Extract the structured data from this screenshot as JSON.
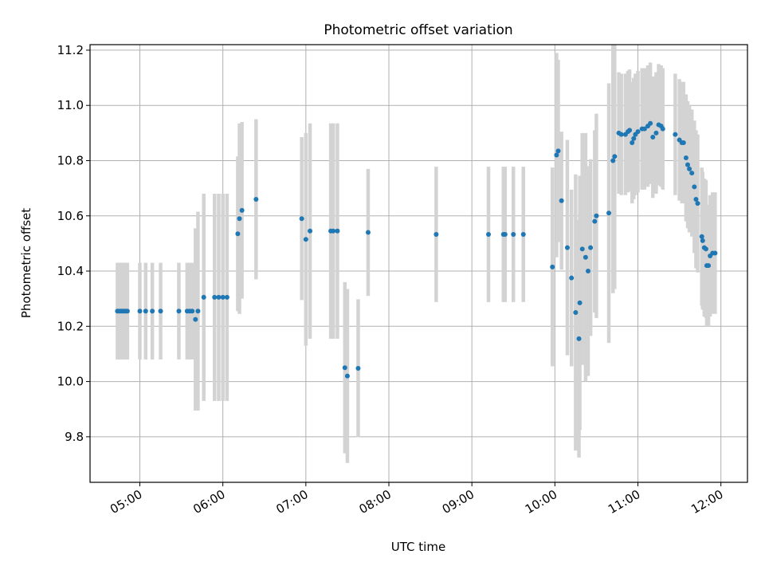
{
  "chart_data": {
    "type": "scatter",
    "title": "Photometric offset variation",
    "xlabel": "UTC time",
    "ylabel": "Photometric offset",
    "x_unit": "UTC hour",
    "xlim": [
      4.4,
      12.32
    ],
    "ylim": [
      9.635,
      11.22
    ],
    "x_ticks": [
      {
        "value": 5,
        "label": "05:00"
      },
      {
        "value": 6,
        "label": "06:00"
      },
      {
        "value": 7,
        "label": "07:00"
      },
      {
        "value": 8,
        "label": "08:00"
      },
      {
        "value": 9,
        "label": "09:00"
      },
      {
        "value": 10,
        "label": "10:00"
      },
      {
        "value": 11,
        "label": "11:00"
      },
      {
        "value": 12,
        "label": "12:00"
      }
    ],
    "y_ticks": [
      {
        "value": 9.8,
        "label": "9.8"
      },
      {
        "value": 10.0,
        "label": "10.0"
      },
      {
        "value": 10.2,
        "label": "10.2"
      },
      {
        "value": 10.4,
        "label": "10.4"
      },
      {
        "value": 10.6,
        "label": "10.6"
      },
      {
        "value": 10.8,
        "label": "10.8"
      },
      {
        "value": 11.0,
        "label": "11.0"
      },
      {
        "value": 11.2,
        "label": "11.2"
      }
    ],
    "grid": true,
    "colors": {
      "marker": "#1f77b4",
      "errorbar": "#d3d3d3",
      "grid": "#b0b0b0"
    },
    "series": [
      {
        "points": [
          [
            4.73,
            10.255,
            0.175
          ],
          [
            4.75,
            10.255,
            0.175
          ],
          [
            4.77,
            10.255,
            0.175
          ],
          [
            4.79,
            10.255,
            0.175
          ],
          [
            4.81,
            10.255,
            0.175
          ],
          [
            4.83,
            10.255,
            0.175
          ],
          [
            4.85,
            10.255,
            0.175
          ],
          [
            5.0,
            10.255,
            0.175
          ],
          [
            5.07,
            10.255,
            0.175
          ],
          [
            5.15,
            10.255,
            0.175
          ],
          [
            5.25,
            10.255,
            0.175
          ],
          [
            5.47,
            10.255,
            0.175
          ],
          [
            5.57,
            10.255,
            0.175
          ],
          [
            5.6,
            10.255,
            0.175
          ],
          [
            5.63,
            10.255,
            0.175
          ],
          [
            5.67,
            10.225,
            0.33
          ],
          [
            5.7,
            10.255,
            0.36
          ],
          [
            5.77,
            10.305,
            0.375
          ],
          [
            5.9,
            10.305,
            0.375
          ],
          [
            5.95,
            10.305,
            0.375
          ],
          [
            6.0,
            10.305,
            0.375
          ],
          [
            6.05,
            10.305,
            0.375
          ],
          [
            6.18,
            10.535,
            0.28
          ],
          [
            6.2,
            10.59,
            0.345
          ],
          [
            6.23,
            10.62,
            0.32
          ],
          [
            6.4,
            10.66,
            0.29
          ],
          [
            6.95,
            10.59,
            0.295
          ],
          [
            7.0,
            10.515,
            0.385
          ],
          [
            7.05,
            10.545,
            0.39
          ],
          [
            7.3,
            10.545,
            0.39
          ],
          [
            7.33,
            10.545,
            0.39
          ],
          [
            7.38,
            10.545,
            0.39
          ],
          [
            7.47,
            10.05,
            0.31
          ],
          [
            7.5,
            10.02,
            0.315
          ],
          [
            7.63,
            10.048,
            0.25
          ],
          [
            7.75,
            10.54,
            0.23
          ],
          [
            8.57,
            10.533,
            0.245
          ],
          [
            9.2,
            10.533,
            0.245
          ],
          [
            9.38,
            10.533,
            0.245
          ],
          [
            9.4,
            10.533,
            0.245
          ],
          [
            9.5,
            10.533,
            0.245
          ],
          [
            9.62,
            10.533,
            0.245
          ],
          [
            9.97,
            10.415,
            0.36
          ],
          [
            10.02,
            10.82,
            0.37
          ],
          [
            10.04,
            10.835,
            0.33
          ],
          [
            10.08,
            10.655,
            0.25
          ],
          [
            10.15,
            10.485,
            0.39
          ],
          [
            10.2,
            10.375,
            0.32
          ],
          [
            10.25,
            10.25,
            0.5
          ],
          [
            10.29,
            10.155,
            0.43
          ],
          [
            10.3,
            10.285,
            0.46
          ],
          [
            10.33,
            10.48,
            0.42
          ],
          [
            10.37,
            10.45,
            0.45
          ],
          [
            10.4,
            10.4,
            0.38
          ],
          [
            10.43,
            10.485,
            0.32
          ],
          [
            10.48,
            10.58,
            0.33
          ],
          [
            10.5,
            10.6,
            0.37
          ],
          [
            10.65,
            10.61,
            0.47
          ],
          [
            10.7,
            10.8,
            0.48
          ],
          [
            10.72,
            10.815,
            0.48
          ],
          [
            10.77,
            10.9,
            0.22
          ],
          [
            10.8,
            10.895,
            0.22
          ],
          [
            10.85,
            10.895,
            0.22
          ],
          [
            10.88,
            10.905,
            0.22
          ],
          [
            10.9,
            10.91,
            0.22
          ],
          [
            10.93,
            10.865,
            0.22
          ],
          [
            10.95,
            10.88,
            0.22
          ],
          [
            10.97,
            10.895,
            0.22
          ],
          [
            11.0,
            10.905,
            0.22
          ],
          [
            11.05,
            10.915,
            0.22
          ],
          [
            11.08,
            10.915,
            0.22
          ],
          [
            11.12,
            10.925,
            0.22
          ],
          [
            11.15,
            10.935,
            0.22
          ],
          [
            11.18,
            10.885,
            0.22
          ],
          [
            11.22,
            10.9,
            0.22
          ],
          [
            11.25,
            10.93,
            0.22
          ],
          [
            11.28,
            10.925,
            0.22
          ],
          [
            11.3,
            10.915,
            0.22
          ],
          [
            11.45,
            10.895,
            0.22
          ],
          [
            11.5,
            10.875,
            0.22
          ],
          [
            11.53,
            10.865,
            0.22
          ],
          [
            11.55,
            10.865,
            0.22
          ],
          [
            11.58,
            10.81,
            0.23
          ],
          [
            11.6,
            10.785,
            0.23
          ],
          [
            11.62,
            10.77,
            0.23
          ],
          [
            11.65,
            10.755,
            0.23
          ],
          [
            11.68,
            10.705,
            0.24
          ],
          [
            11.7,
            10.66,
            0.25
          ],
          [
            11.72,
            10.645,
            0.25
          ],
          [
            11.77,
            10.525,
            0.25
          ],
          [
            11.78,
            10.51,
            0.25
          ],
          [
            11.8,
            10.485,
            0.25
          ],
          [
            11.82,
            10.48,
            0.25
          ],
          [
            11.83,
            10.42,
            0.22
          ],
          [
            11.85,
            10.42,
            0.22
          ],
          [
            11.87,
            10.455,
            0.22
          ],
          [
            11.9,
            10.465,
            0.22
          ],
          [
            11.93,
            10.465,
            0.22
          ]
        ]
      }
    ]
  }
}
